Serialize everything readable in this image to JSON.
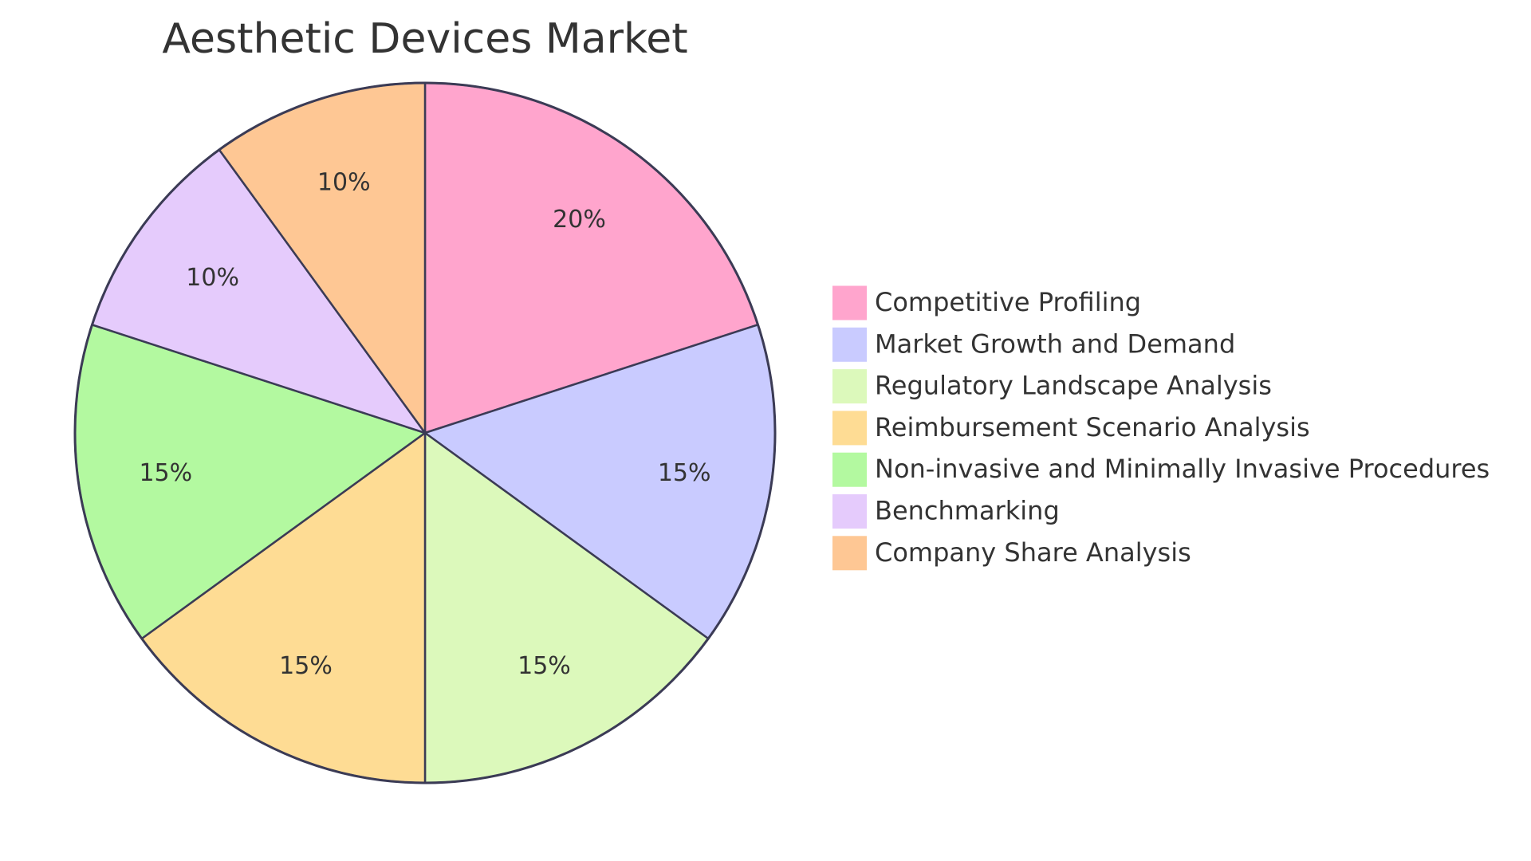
{
  "chart_data": {
    "type": "pie",
    "title": "Aesthetic Devices Market",
    "categories": [
      "Competitive Profiling",
      "Market Growth and Demand",
      "Regulatory Landscape Analysis",
      "Reimbursement Scenario Analysis",
      "Non-invasive and Minimally Invasive Procedures",
      "Benchmarking",
      "Company Share Analysis"
    ],
    "values": [
      20,
      15,
      15,
      15,
      15,
      10,
      10
    ],
    "value_labels": [
      "20%",
      "15%",
      "15%",
      "15%",
      "15%",
      "10%",
      "10%"
    ],
    "colors": [
      "#ffa5cd",
      "#c9cbff",
      "#dcf9bb",
      "#fedc94",
      "#b3f9a0",
      "#e5cbfc",
      "#fec794"
    ]
  }
}
